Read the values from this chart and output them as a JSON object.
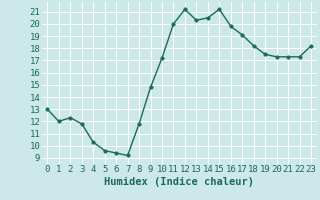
{
  "x": [
    0,
    1,
    2,
    3,
    4,
    5,
    6,
    7,
    8,
    9,
    10,
    11,
    12,
    13,
    14,
    15,
    16,
    17,
    18,
    19,
    20,
    21,
    22,
    23
  ],
  "y": [
    13.0,
    12.0,
    12.3,
    11.8,
    10.3,
    9.6,
    9.4,
    9.2,
    11.8,
    14.8,
    17.2,
    20.0,
    21.2,
    20.3,
    20.5,
    21.2,
    19.8,
    19.1,
    18.2,
    17.5,
    17.3,
    17.3,
    17.3,
    18.2
  ],
  "xlabel": "Humidex (Indice chaleur)",
  "bg_color": "#cce8e8",
  "line_color": "#1a6b5a",
  "marker_color": "#1a6b5a",
  "grid_color": "#ffffff",
  "ylim": [
    8.5,
    21.8
  ],
  "xlim": [
    -0.5,
    23.5
  ],
  "yticks": [
    9,
    10,
    11,
    12,
    13,
    14,
    15,
    16,
    17,
    18,
    19,
    20,
    21
  ],
  "xticks": [
    0,
    1,
    2,
    3,
    4,
    5,
    6,
    7,
    8,
    9,
    10,
    11,
    12,
    13,
    14,
    15,
    16,
    17,
    18,
    19,
    20,
    21,
    22,
    23
  ],
  "xtick_labels": [
    "0",
    "1",
    "2",
    "3",
    "4",
    "5",
    "6",
    "7",
    "8",
    "9",
    "10",
    "11",
    "12",
    "13",
    "14",
    "15",
    "16",
    "17",
    "18",
    "19",
    "20",
    "21",
    "22",
    "23"
  ],
  "tick_fontsize": 6.5,
  "xlabel_fontsize": 7.5,
  "line_width": 1.0,
  "marker_size": 2.5
}
